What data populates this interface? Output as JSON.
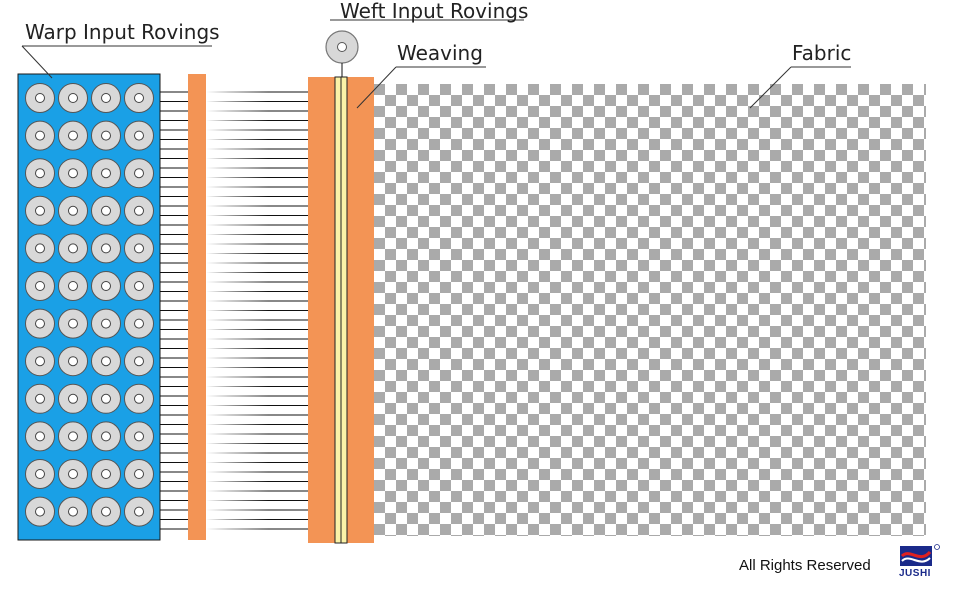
{
  "labels": {
    "warp": "Warp Input Rovings",
    "weft": "Weft Input Rovings",
    "weaving": "Weaving",
    "fabric": "Fabric"
  },
  "footer": {
    "rights": "All Rights Reserved",
    "logo_text": "JUSHI",
    "registered_mark": "®"
  },
  "creel": {
    "columns": 4,
    "rows": 12,
    "color": "#1aa0e6",
    "spool_color": "#d8d8d8"
  },
  "colors": {
    "reed": "#f39455",
    "beater_bar": "#fbf3a8",
    "fabric_check": "#aaaaaa",
    "yarn": "#111111",
    "logo_blue": "#1a2a8a",
    "logo_red": "#e02020"
  }
}
